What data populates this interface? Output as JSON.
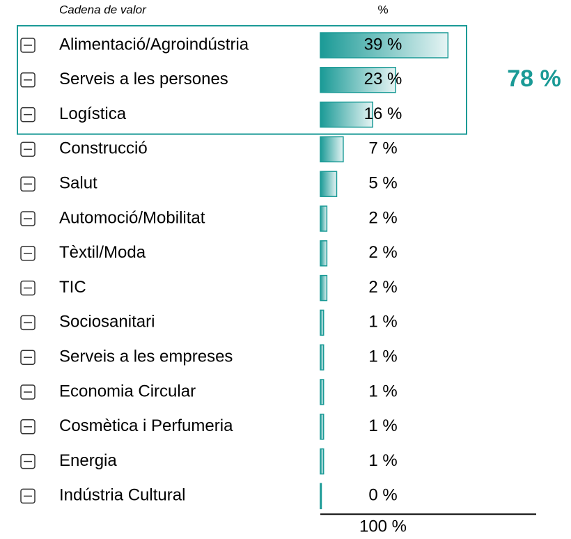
{
  "chart_data": {
    "type": "bar",
    "orientation": "horizontal",
    "header_category": "Cadena de valor",
    "header_value": "%",
    "categories": [
      "Alimentació/Agroindústria",
      "Serveis a les persones",
      "Logística",
      "Construcció",
      "Salut",
      "Automoció/Mobilitat",
      "Tèxtil/Moda",
      "TIC",
      "Sociosanitari",
      "Serveis a les empreses",
      "Economia Circular",
      "Cosmètica i Perfumeria",
      "Energia",
      "Indústria Cultural"
    ],
    "values": [
      39,
      23,
      16,
      7,
      5,
      2,
      2,
      2,
      1,
      1,
      1,
      1,
      1,
      0
    ],
    "value_labels": [
      "39 %",
      "23 %",
      "16 %",
      "7 %",
      "5 %",
      "2 %",
      "2 %",
      "2 %",
      "1 %",
      "1 %",
      "1 %",
      "1 %",
      "1 %",
      "0 %"
    ],
    "xlim": [
      0,
      40
    ],
    "color": "#1a9a96",
    "total_label": "100 %",
    "highlight_label": "78 %",
    "highlight_color": "#1a9a96"
  }
}
